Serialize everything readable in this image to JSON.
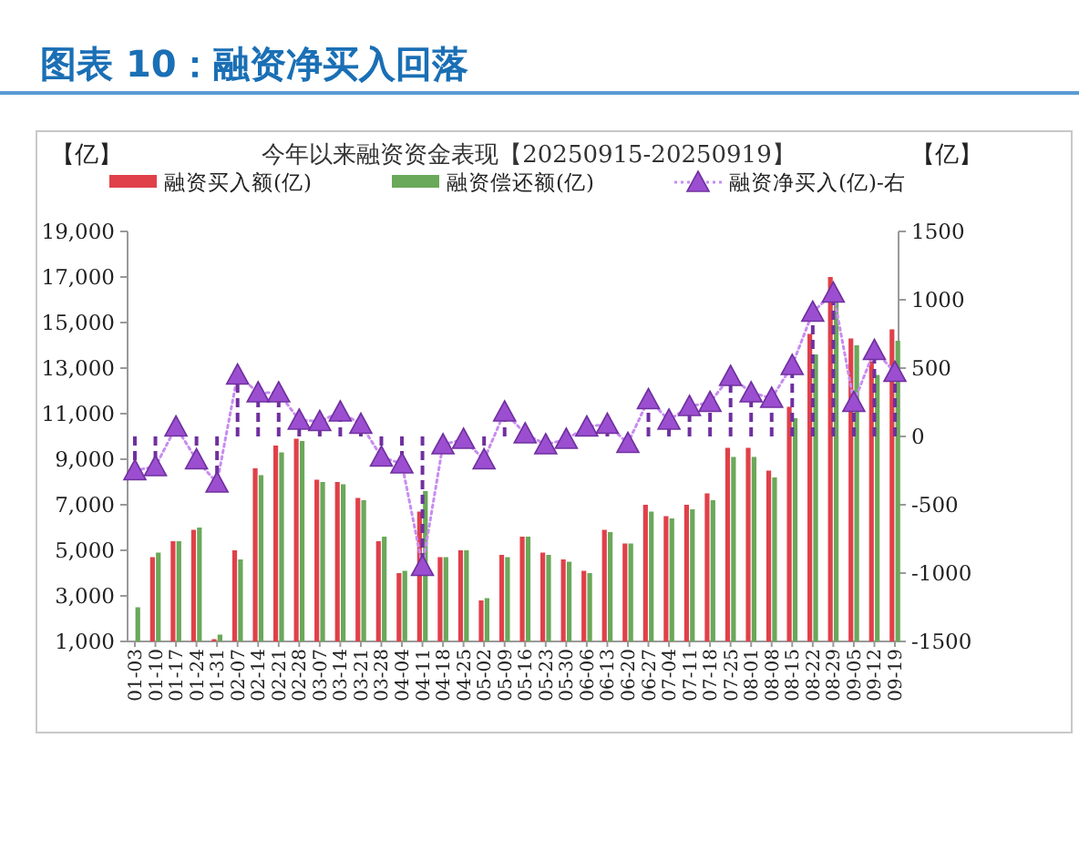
{
  "chart_data": {
    "type": "bar",
    "title": "图表 10：融资净买入回落",
    "subtitle": "今年以来融资资金表现【20250915-20250919】",
    "ylabel": "【亿】",
    "y2label": "【亿】",
    "categories": [
      "01-03",
      "01-10",
      "01-17",
      "01-24",
      "01-31",
      "02-07",
      "02-14",
      "02-21",
      "02-28",
      "03-07",
      "03-14",
      "03-21",
      "03-28",
      "04-04",
      "04-11",
      "04-18",
      "04-25",
      "05-02",
      "05-09",
      "05-16",
      "05-23",
      "05-30",
      "06-06",
      "06-13",
      "06-20",
      "06-27",
      "07-04",
      "07-11",
      "07-18",
      "07-25",
      "08-01",
      "08-08",
      "08-15",
      "08-22",
      "08-29",
      "09-05",
      "09-12",
      "09-19"
    ],
    "series": [
      {
        "name": "融资买入额(亿)",
        "type": "bar",
        "color": "#e0404a",
        "values": [
          null,
          4700,
          5400,
          5900,
          1100,
          5000,
          8600,
          9600,
          9900,
          8100,
          8000,
          7300,
          5400,
          4000,
          6700,
          4700,
          5000,
          2800,
          4800,
          5600,
          4900,
          4600,
          4100,
          5900,
          5300,
          7000,
          6500,
          7000,
          7500,
          9500,
          9500,
          8500,
          11300,
          14500,
          17000,
          14300,
          13300,
          14700
        ]
      },
      {
        "name": "融资偿还额(亿)",
        "type": "bar",
        "color": "#6aa85a",
        "values": [
          2500,
          4900,
          5400,
          6000,
          1300,
          4600,
          8300,
          9300,
          9800,
          8000,
          7900,
          7200,
          5600,
          4100,
          7600,
          4700,
          5000,
          2900,
          4700,
          5600,
          4800,
          4500,
          4000,
          5800,
          5300,
          6700,
          6400,
          6800,
          7200,
          9100,
          9100,
          8200,
          10800,
          13600,
          16000,
          14000,
          12700,
          14200
        ]
      },
      {
        "type": "line",
        "axis": "y2",
        "color": "#c88cf0",
        "line_style": "dotted",
        "values": [
          -250,
          -220,
          70,
          -170,
          -340,
          450,
          320,
          320,
          120,
          110,
          180,
          90,
          -150,
          -200,
          -950,
          -60,
          -20,
          -170,
          180,
          20,
          -60,
          -20,
          70,
          90,
          -50,
          270,
          120,
          220,
          250,
          440,
          320,
          280,
          520,
          910,
          1050,
          250,
          630,
          470
        ]
      },
      {
        "name": "融资净买入(亿)-右",
        "type": "lollipop",
        "axis": "y2",
        "color": "#9b4fd0",
        "marker": "triangle",
        "line_style": "dashed",
        "values": [
          -250,
          -220,
          70,
          -170,
          -340,
          450,
          320,
          320,
          120,
          110,
          180,
          90,
          -150,
          -200,
          -950,
          -60,
          -20,
          -170,
          180,
          20,
          -60,
          -20,
          70,
          90,
          -50,
          270,
          120,
          220,
          250,
          440,
          320,
          280,
          520,
          910,
          1050,
          250,
          630,
          470
        ]
      }
    ],
    "ylim": [
      1000,
      19000
    ],
    "yticks": [
      {
        "value": 1000,
        "label": "1,000"
      },
      {
        "value": 3000,
        "label": "3,000"
      },
      {
        "value": 5000,
        "label": "5,000"
      },
      {
        "value": 7000,
        "label": "7,000"
      },
      {
        "value": 9000,
        "label": "9,000"
      },
      {
        "value": 11000,
        "label": "11,000"
      },
      {
        "value": 13000,
        "label": "13,000"
      },
      {
        "value": 15000,
        "label": "15,000"
      },
      {
        "value": 17000,
        "label": "17,000"
      },
      {
        "value": 19000,
        "label": "19,000"
      }
    ],
    "y2lim": [
      -1500,
      1500
    ],
    "y2ticks": [
      -1500,
      -1000,
      -500,
      0,
      500,
      1000,
      1500
    ],
    "legend": "top"
  }
}
